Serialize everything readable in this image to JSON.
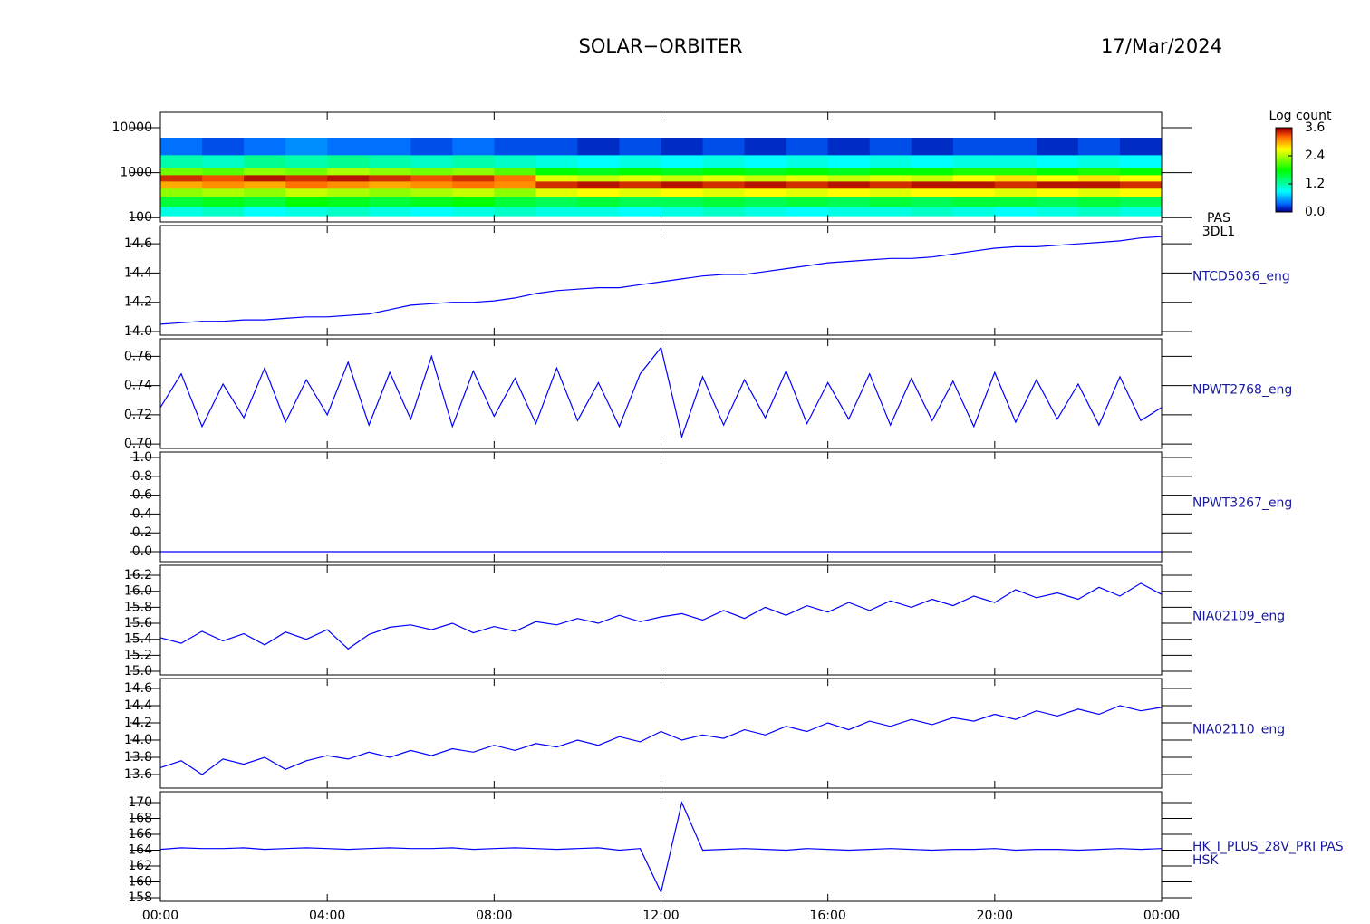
{
  "title": "SOLAR−ORBITER",
  "date": "17/Mar/2024",
  "time": {
    "x": [
      0,
      0.5,
      1,
      1.5,
      2,
      2.5,
      3,
      3.5,
      4,
      4.5,
      5,
      5.5,
      6,
      6.5,
      7,
      7.5,
      8,
      8.5,
      9,
      9.5,
      10,
      10.5,
      11,
      11.5,
      12,
      12.5,
      13,
      13.5,
      14,
      14.5,
      15,
      15.5,
      16,
      16.5,
      17,
      17.5,
      18,
      18.5,
      19,
      19.5,
      20,
      20.5,
      21,
      21.5,
      22,
      22.5,
      23,
      23.5,
      24
    ],
    "xlim": [
      0,
      24
    ],
    "xticks": [
      {
        "value": 0,
        "label": "00:00"
      },
      {
        "value": 4,
        "label": "04:00"
      },
      {
        "value": 8,
        "label": "08:00"
      },
      {
        "value": 12,
        "label": "12:00"
      },
      {
        "value": 16,
        "label": "16:00"
      },
      {
        "value": 20,
        "label": "20:00"
      },
      {
        "value": 24,
        "label": "00:00"
      }
    ]
  },
  "chart_data": [
    {
      "type": "heatmap",
      "label": [
        "PAS",
        "3DL1"
      ],
      "log": true,
      "ylim": [
        80,
        22000
      ],
      "yticks": [
        100,
        1000,
        10000
      ],
      "time_bins": [
        0,
        1,
        2,
        3,
        4,
        5,
        6,
        7,
        8,
        9,
        10,
        11,
        12,
        13,
        14,
        15,
        16,
        17,
        18,
        19,
        20,
        21,
        22,
        23,
        24
      ],
      "energy_bins": [
        110,
        180,
        300,
        450,
        650,
        900,
        1300,
        2500,
        6000
      ],
      "values": [
        [
          1.0,
          1.1,
          0.9,
          1.0,
          1.1,
          1.0,
          0.9,
          1.0,
          1.1,
          1.0,
          1.0,
          0.9,
          1.0,
          1.1,
          1.0,
          0.9,
          1.0,
          1.0,
          1.1,
          1.0,
          0.9,
          1.0,
          1.1,
          1.0
        ],
        [
          1.6,
          1.7,
          1.6,
          1.8,
          1.7,
          1.6,
          1.7,
          1.8,
          1.6,
          1.5,
          1.6,
          1.5,
          1.5,
          1.6,
          1.5,
          1.6,
          1.5,
          1.6,
          1.5,
          1.6,
          1.6,
          1.5,
          1.6,
          1.5
        ],
        [
          2.3,
          2.4,
          2.3,
          2.5,
          2.4,
          2.3,
          2.4,
          2.5,
          2.3,
          2.6,
          2.7,
          2.6,
          2.7,
          2.6,
          2.7,
          2.6,
          2.7,
          2.6,
          2.7,
          2.7,
          2.6,
          2.7,
          2.6,
          2.7
        ],
        [
          3.0,
          3.1,
          3.0,
          3.2,
          3.1,
          3.0,
          3.1,
          3.2,
          3.1,
          3.4,
          3.5,
          3.4,
          3.5,
          3.4,
          3.5,
          3.4,
          3.5,
          3.4,
          3.5,
          3.5,
          3.4,
          3.5,
          3.5,
          3.4
        ],
        [
          3.4,
          3.3,
          3.5,
          3.4,
          3.5,
          3.4,
          3.3,
          3.4,
          3.2,
          2.6,
          2.5,
          2.6,
          2.5,
          2.6,
          2.5,
          2.6,
          2.5,
          2.6,
          2.5,
          2.7,
          2.8,
          2.7,
          2.8,
          2.7
        ],
        [
          2.2,
          2.1,
          2.3,
          2.2,
          2.4,
          2.3,
          2.2,
          2.3,
          2.1,
          1.8,
          1.7,
          1.8,
          1.7,
          1.8,
          1.7,
          1.8,
          1.7,
          1.8,
          1.8,
          1.9,
          1.9,
          1.8,
          1.9,
          1.8
        ],
        [
          1.2,
          1.1,
          1.3,
          1.2,
          1.3,
          1.2,
          1.1,
          1.2,
          1.1,
          1.0,
          0.9,
          1.0,
          0.9,
          1.0,
          0.9,
          1.0,
          0.9,
          1.0,
          0.9,
          1.0,
          1.0,
          0.9,
          1.0,
          0.9
        ],
        [
          0.4,
          0.3,
          0.4,
          0.5,
          0.4,
          0.4,
          0.3,
          0.4,
          0.3,
          0.3,
          0.2,
          0.3,
          0.2,
          0.3,
          0.2,
          0.3,
          0.2,
          0.3,
          0.2,
          0.3,
          0.3,
          0.2,
          0.3,
          0.2
        ]
      ],
      "colorbar": {
        "title": "Log count",
        "lim": [
          0,
          3.6
        ],
        "ticks": [
          {
            "value": 0,
            "label": "0.0"
          },
          1.2,
          2.4,
          3.6
        ]
      }
    },
    {
      "type": "line",
      "label": [
        "NTCD5036_eng"
      ],
      "color": "#0000ff",
      "ylim": [
        13.975,
        14.725
      ],
      "yticks": [
        {
          "value": 14,
          "label": "14.0"
        },
        14.2,
        14.4,
        14.6
      ],
      "values": [
        14.05,
        14.06,
        14.07,
        14.07,
        14.08,
        14.08,
        14.09,
        14.1,
        14.1,
        14.11,
        14.12,
        14.15,
        14.18,
        14.19,
        14.2,
        14.2,
        14.21,
        14.23,
        14.26,
        14.28,
        14.29,
        14.3,
        14.3,
        14.32,
        14.34,
        14.36,
        14.38,
        14.39,
        14.39,
        14.41,
        14.43,
        14.45,
        14.47,
        14.48,
        14.49,
        14.5,
        14.5,
        14.51,
        14.53,
        14.55,
        14.57,
        14.58,
        14.58,
        14.59,
        14.6,
        14.61,
        14.62,
        14.64,
        14.65
      ]
    },
    {
      "type": "line",
      "label": [
        "NPWT2768_eng"
      ],
      "color": "#0000ff",
      "ylim": [
        0.697,
        0.772
      ],
      "yticks": [
        {
          "value": 0.7,
          "label": "0.70"
        },
        0.72,
        0.74,
        0.76
      ],
      "values": [
        0.725,
        0.748,
        0.712,
        0.741,
        0.718,
        0.752,
        0.715,
        0.744,
        0.72,
        0.756,
        0.713,
        0.749,
        0.717,
        0.76,
        0.712,
        0.75,
        0.719,
        0.745,
        0.714,
        0.752,
        0.716,
        0.742,
        0.712,
        0.748,
        0.766,
        0.705,
        0.746,
        0.713,
        0.744,
        0.718,
        0.75,
        0.714,
        0.742,
        0.717,
        0.748,
        0.713,
        0.745,
        0.716,
        0.743,
        0.712,
        0.749,
        0.715,
        0.744,
        0.717,
        0.741,
        0.713,
        0.746,
        0.716,
        0.725
      ]
    },
    {
      "type": "line",
      "label": [
        "NPWT3267_eng"
      ],
      "color": "#0000ff",
      "ylim": [
        -0.106,
        1.058
      ],
      "yticks": [
        {
          "value": 0,
          "label": "0.0"
        },
        0.2,
        0.4,
        0.6,
        0.8,
        {
          "value": 1,
          "label": "1.0"
        }
      ],
      "values": [
        0,
        0,
        0,
        0,
        0,
        0,
        0,
        0,
        0,
        0,
        0,
        0,
        0,
        0,
        0,
        0,
        0,
        0,
        0,
        0,
        0,
        0,
        0,
        0,
        0,
        0,
        0,
        0,
        0,
        0,
        0,
        0,
        0,
        0,
        0,
        0,
        0,
        0,
        0,
        0,
        0,
        0,
        0,
        0,
        0,
        0,
        0,
        0,
        0
      ]
    },
    {
      "type": "line",
      "label": [
        "NIA02109_eng"
      ],
      "color": "#0000ff",
      "ylim": [
        14.955,
        16.325
      ],
      "yticks": [
        {
          "value": 15,
          "label": "15.0"
        },
        15.2,
        15.4,
        15.6,
        15.8,
        {
          "value": 16,
          "label": "16.0"
        },
        16.2
      ],
      "values": [
        15.42,
        15.35,
        15.5,
        15.38,
        15.47,
        15.33,
        15.49,
        15.4,
        15.52,
        15.28,
        15.46,
        15.55,
        15.58,
        15.52,
        15.6,
        15.48,
        15.56,
        15.5,
        15.62,
        15.58,
        15.66,
        15.6,
        15.7,
        15.62,
        15.68,
        15.72,
        15.64,
        15.76,
        15.66,
        15.8,
        15.7,
        15.82,
        15.74,
        15.86,
        15.76,
        15.88,
        15.8,
        15.9,
        15.82,
        15.94,
        15.86,
        16.02,
        15.92,
        15.98,
        15.9,
        16.05,
        15.94,
        16.1,
        15.96
      ]
    },
    {
      "type": "line",
      "label": [
        "NIA02110_eng"
      ],
      "color": "#0000ff",
      "ylim": [
        13.442,
        14.716
      ],
      "yticks": [
        13.6,
        13.8,
        {
          "value": 14,
          "label": "14.0"
        },
        14.2,
        14.4,
        14.6
      ],
      "values": [
        13.68,
        13.76,
        13.6,
        13.78,
        13.72,
        13.8,
        13.66,
        13.76,
        13.82,
        13.78,
        13.86,
        13.8,
        13.88,
        13.82,
        13.9,
        13.86,
        13.94,
        13.88,
        13.96,
        13.92,
        14.0,
        13.94,
        14.04,
        13.98,
        14.1,
        14.0,
        14.06,
        14.02,
        14.12,
        14.06,
        14.16,
        14.1,
        14.2,
        14.12,
        14.22,
        14.16,
        14.24,
        14.18,
        14.26,
        14.22,
        14.3,
        14.24,
        14.34,
        14.28,
        14.36,
        14.3,
        14.4,
        14.34,
        14.38
      ]
    },
    {
      "type": "line",
      "label": [
        "HK_I_PLUS_28V_PRI PAS",
        "HSK"
      ],
      "color": "#0000ff",
      "ylim": [
        157.54,
        171.37
      ],
      "yticks": [
        158,
        160,
        162,
        164,
        166,
        168,
        170
      ],
      "values": [
        164.1,
        164.3,
        164.2,
        164.2,
        164.3,
        164.1,
        164.2,
        164.3,
        164.2,
        164.1,
        164.2,
        164.3,
        164.2,
        164.2,
        164.3,
        164.1,
        164.2,
        164.3,
        164.2,
        164.1,
        164.2,
        164.3,
        164.0,
        164.2,
        158.7,
        170.0,
        164.0,
        164.1,
        164.2,
        164.1,
        164.0,
        164.2,
        164.1,
        164.0,
        164.1,
        164.2,
        164.1,
        164.0,
        164.1,
        164.1,
        164.2,
        164.0,
        164.1,
        164.1,
        164.0,
        164.1,
        164.2,
        164.1,
        164.2
      ]
    }
  ]
}
